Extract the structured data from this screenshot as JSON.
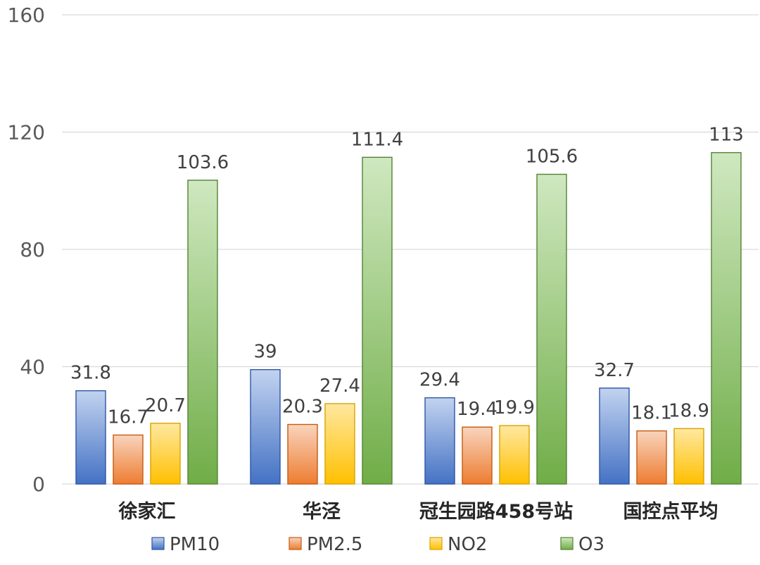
{
  "chart_data": {
    "type": "bar",
    "categories": [
      "徐家汇",
      "华泾",
      "冠生园路458号站",
      "国控点平均"
    ],
    "series": [
      {
        "name": "PM10",
        "values": [
          31.8,
          39,
          29.4,
          32.7
        ]
      },
      {
        "name": "PM2.5",
        "values": [
          16.7,
          20.3,
          19.4,
          18.1
        ]
      },
      {
        "name": "NO2",
        "values": [
          20.7,
          27.4,
          19.9,
          18.9
        ]
      },
      {
        "name": "O3",
        "values": [
          103.6,
          111.4,
          105.6,
          113
        ]
      }
    ],
    "data_labels": [
      [
        "31.8",
        "39",
        "29.4",
        "32.7"
      ],
      [
        "16.7",
        "20.3",
        "19.4",
        "18.1"
      ],
      [
        "20.7",
        "27.4",
        "19.9",
        "18.9"
      ],
      [
        "103.6",
        "111.4",
        "105.6",
        "113"
      ]
    ],
    "yticks": [
      0,
      40,
      80,
      120,
      160
    ],
    "ytick_labels": [
      "0",
      "40",
      "80",
      "120",
      "160"
    ],
    "ylim": [
      0,
      160
    ],
    "title": "",
    "xlabel": "",
    "ylabel": "",
    "grid": true,
    "legend_position": "bottom",
    "colors": {
      "PM10": {
        "light": "#c2d3f0",
        "dark": "#4472c4",
        "border": "#2f55a4"
      },
      "PM2.5": {
        "light": "#f9d4bd",
        "dark": "#ed7d31",
        "border": "#c55a11"
      },
      "NO2": {
        "light": "#ffe8a0",
        "dark": "#ffc000",
        "border": "#d9a300"
      },
      "O3": {
        "light": "#cfe8c0",
        "dark": "#70ad47",
        "border": "#548235"
      },
      "gridline": "#d9d9d9"
    }
  }
}
